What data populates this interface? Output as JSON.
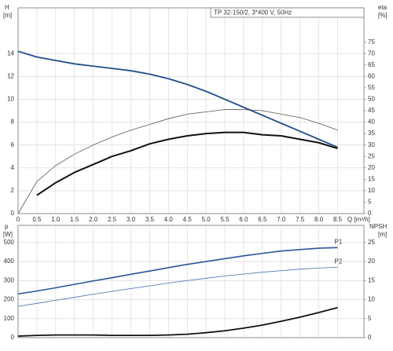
{
  "chart_data": [
    {
      "type": "line",
      "title": "TP 32-150/2, 3*400 V, 50Hz",
      "ylabel": [
        "H",
        "[m]"
      ],
      "y2label": [
        "eta",
        "[%]"
      ],
      "xlabel": "Q [m³/h]",
      "x": [
        0,
        0.5,
        1,
        1.5,
        2,
        2.5,
        3,
        3.5,
        4,
        4.5,
        5,
        5.5,
        6,
        6.5,
        7,
        7.5,
        8,
        8.5
      ],
      "xlim": [
        0,
        9.2
      ],
      "xticks": [
        0,
        0.5,
        {
          "value": 1,
          "label": "1.0"
        },
        1.5,
        {
          "value": 2,
          "label": "2.0"
        },
        2.5,
        {
          "value": 3,
          "label": "3.0"
        },
        3.5,
        {
          "value": 4,
          "label": "4.0"
        },
        4.5,
        {
          "value": 5,
          "label": "5.0"
        },
        5.5,
        {
          "value": 6,
          "label": "6.0"
        },
        6.5,
        {
          "value": 7,
          "label": "7.0"
        },
        7.5,
        {
          "value": 8,
          "label": "8.0"
        },
        8.5
      ],
      "ylim": [
        0,
        18
      ],
      "yticks": [
        0,
        2,
        4,
        6,
        8,
        10,
        12,
        14
      ],
      "y2lim": [
        0,
        90
      ],
      "y2ticks": [
        0,
        5,
        10,
        15,
        20,
        25,
        30,
        35,
        40,
        45,
        50,
        55,
        60,
        65,
        70,
        75
      ],
      "grid": true,
      "series": [
        {
          "color": "#1f4e8c",
          "line_width": 1.8,
          "values": [
            14.2,
            13.7,
            13.4,
            13.1,
            12.9,
            12.7,
            12.5,
            12.2,
            11.8,
            11.3,
            10.7,
            10.0,
            9.3,
            8.6,
            7.9,
            7.2,
            6.5,
            5.8
          ]
        },
        {
          "color": "#555555",
          "line_width": 0.8,
          "axis": "y2",
          "values": [
            0,
            14,
            21,
            26,
            30,
            33.5,
            36.5,
            39,
            41.5,
            43.5,
            44.5,
            45.5,
            45.5,
            45,
            43.5,
            42,
            39.5,
            36.5
          ]
        },
        {
          "color": "#111111",
          "line_width": 2,
          "axis": "y2",
          "values": [
            null,
            8,
            13.5,
            18,
            21.5,
            25,
            27.5,
            30.5,
            32.5,
            34,
            35,
            35.5,
            35.5,
            34.5,
            34,
            32.5,
            31,
            28.5
          ]
        }
      ]
    },
    {
      "type": "line",
      "ylabel": [
        "p",
        "[W]"
      ],
      "y2label": [
        "NPSH",
        "[m]"
      ],
      "x": [
        0,
        0.5,
        1,
        1.5,
        2,
        2.5,
        3,
        3.5,
        4,
        4.5,
        5,
        5.5,
        6,
        6.5,
        7,
        7.5,
        8,
        8.5
      ],
      "xlim": [
        0,
        9.2
      ],
      "ylim": [
        0,
        590
      ],
      "yticks": [
        0,
        100,
        200,
        300,
        400,
        500
      ],
      "y2lim": [
        0,
        29.5
      ],
      "y2ticks": [
        0,
        5,
        10,
        15,
        20,
        25
      ],
      "grid": true,
      "series": [
        {
          "name": "P1",
          "color": "#2a5599",
          "line_width": 1.6,
          "values": [
            230,
            245,
            262,
            280,
            298,
            315,
            333,
            350,
            368,
            385,
            400,
            415,
            430,
            443,
            455,
            463,
            470,
            473
          ]
        },
        {
          "name": "P2",
          "color": "#5b7fb8",
          "line_width": 0.9,
          "values": [
            165,
            180,
            196,
            212,
            228,
            243,
            258,
            272,
            287,
            300,
            312,
            324,
            334,
            344,
            352,
            360,
            366,
            370
          ]
        },
        {
          "color": "#111111",
          "line_width": 1.8,
          "axis": "y2",
          "values": [
            0.4,
            0.6,
            0.7,
            0.7,
            0.7,
            0.6,
            0.6,
            0.6,
            0.7,
            0.9,
            1.3,
            1.8,
            2.5,
            3.3,
            4.3,
            5.4,
            6.6,
            7.9
          ]
        }
      ]
    }
  ]
}
